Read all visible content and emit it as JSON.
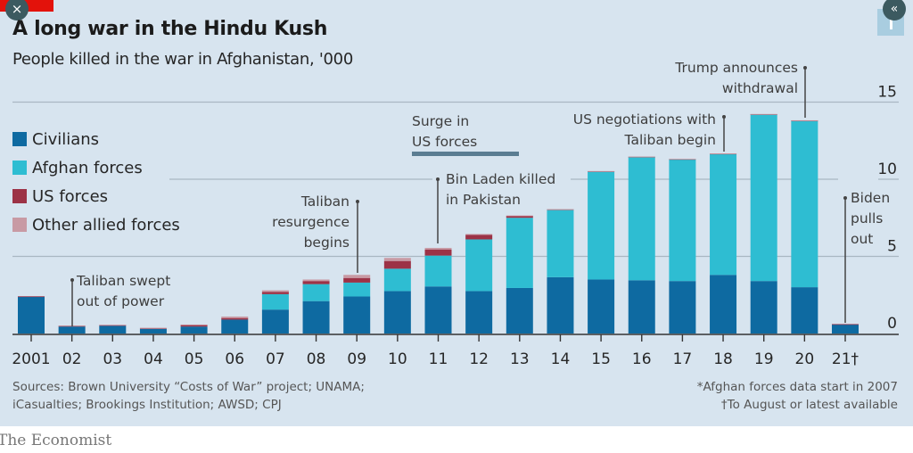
{
  "header": {
    "title": "A long war in the Hindu Kush",
    "subtitle": "People killed in the war in Afghanistan, '000"
  },
  "controls": {
    "close_icon": "×",
    "collapse_icon": "«"
  },
  "legend": [
    {
      "label": "Civilians",
      "color": "#0e6aa1"
    },
    {
      "label": "Afghan forces",
      "color": "#2ebdd2"
    },
    {
      "label": "US forces",
      "color": "#9c3246"
    },
    {
      "label": "Other allied forces",
      "color": "#c89aa4"
    }
  ],
  "annotations": {
    "taliban_swept": [
      "Taliban swept",
      "out of power"
    ],
    "taliban_resurgence": [
      "Taliban",
      "resurgence",
      "begins"
    ],
    "surge": [
      "Surge in",
      "US forces"
    ],
    "bin_laden": [
      "Bin Laden killed",
      "in Pakistan"
    ],
    "negotiations": [
      "US negotiations with",
      "Taliban begin"
    ],
    "trump": [
      "Trump announces",
      "withdrawal"
    ],
    "biden": [
      "Biden",
      "pulls",
      "out"
    ]
  },
  "footer": {
    "sources": [
      "Sources: Brown University “Costs of War” project; UNAMA;",
      "iCasualties; Brookings Institution; AWSD; CPJ"
    ],
    "footnotes": [
      "*Afghan forces data start in 2007",
      "†To August or latest available"
    ],
    "brand": "The Economist"
  },
  "chart_data": {
    "type": "bar",
    "stacked": true,
    "title": "A long war in the Hindu Kush",
    "subtitle": "People killed in the war in Afghanistan, '000",
    "xlabel": "",
    "ylabel": "'000",
    "ylim": [
      0,
      15
    ],
    "yticks": [
      0,
      5,
      10,
      15
    ],
    "ytick_labels": [
      "0",
      "5",
      "10",
      "15"
    ],
    "grid": true,
    "legend_position": "left",
    "categories": [
      "2001",
      "02",
      "03",
      "04",
      "05",
      "06",
      "07",
      "08",
      "09",
      "10",
      "11",
      "12",
      "13",
      "14",
      "15",
      "16",
      "17",
      "18",
      "19",
      "20",
      "21†"
    ],
    "series": [
      {
        "name": "Civilians",
        "color": "#0e6aa1",
        "values": [
          2.4,
          0.45,
          0.5,
          0.3,
          0.45,
          0.9,
          1.55,
          2.1,
          2.4,
          2.75,
          3.05,
          2.75,
          2.95,
          3.65,
          3.5,
          3.45,
          3.4,
          3.8,
          3.4,
          3.0,
          0.6
        ]
      },
      {
        "name": "Afghan forces",
        "color": "#2ebdd2",
        "values": [
          0,
          0,
          0,
          0,
          0,
          0,
          1.0,
          1.1,
          0.9,
          1.45,
          2.0,
          3.35,
          4.55,
          4.35,
          7.0,
          8.0,
          7.9,
          7.85,
          10.8,
          10.8,
          0
        ]
      },
      {
        "name": "US forces",
        "color": "#9c3246",
        "values": [
          0.01,
          0.05,
          0.05,
          0.05,
          0.1,
          0.1,
          0.15,
          0.2,
          0.3,
          0.5,
          0.4,
          0.3,
          0.13,
          0.05,
          0.02,
          0.01,
          0.01,
          0.01,
          0.02,
          0.01,
          0.01
        ]
      },
      {
        "name": "Other allied forces",
        "color": "#c89aa4",
        "values": [
          0,
          0.02,
          0.02,
          0.02,
          0.03,
          0.1,
          0.1,
          0.1,
          0.2,
          0.2,
          0.1,
          0.05,
          0.02,
          0.01,
          0.01,
          0.01,
          0.01,
          0.01,
          0.01,
          0.01,
          0
        ]
      }
    ]
  }
}
